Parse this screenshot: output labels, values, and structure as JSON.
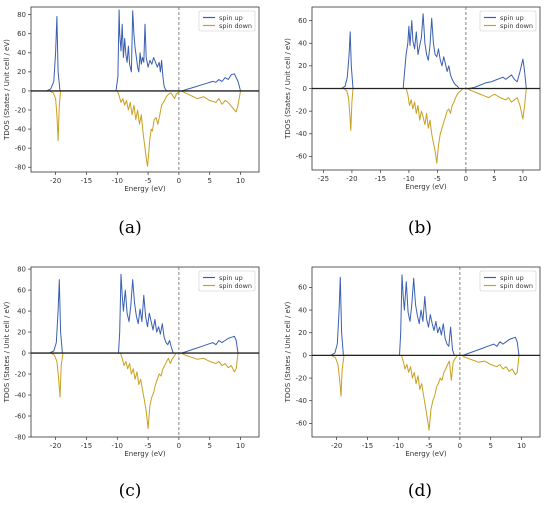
{
  "colors": {
    "spin_up": "#3a5fb0",
    "spin_down": "#c9a020",
    "axis": "#333333",
    "zero_line": "#222222",
    "fermi_line": "#666666"
  },
  "chart_data": [
    {
      "panel": "(a)",
      "type": "line",
      "xlabel": "Energy (eV)",
      "ylabel": "TDOS (States / Unit cell / eV)",
      "xlim": [
        -24,
        13
      ],
      "ylim": [
        -85,
        88
      ],
      "xticks": [
        -20,
        -15,
        -10,
        -5,
        0,
        5,
        10
      ],
      "yticks": [
        -80,
        -60,
        -40,
        -20,
        0,
        20,
        40,
        60,
        80
      ],
      "fermi_level": 0,
      "legend": "top-right",
      "series": [
        {
          "name": "spin up",
          "color": "#3a5fb0",
          "x": [
            -21.5,
            -20.8,
            -20.3,
            -20.0,
            -19.8,
            -19.6,
            -19.3,
            -10.2,
            -9.9,
            -9.7,
            -9.6,
            -9.4,
            -9.2,
            -9.0,
            -8.8,
            -8.6,
            -8.4,
            -8.2,
            -8.0,
            -7.7,
            -7.5,
            -7.3,
            -7.1,
            -6.9,
            -6.7,
            -6.5,
            -6.3,
            -6.1,
            -5.9,
            -5.7,
            -5.5,
            -5.3,
            -5.0,
            -4.7,
            -4.4,
            -4.1,
            -3.8,
            -3.5,
            -3.2,
            -3.0,
            -2.8,
            -2.6,
            -2.4,
            -2.2,
            -2.0,
            0.5,
            1.5,
            2.5,
            3.5,
            4.5,
            5.5,
            6.0,
            6.5,
            7.0,
            7.5,
            8.0,
            8.5,
            9.0,
            9.3,
            9.6,
            10.0
          ],
          "values": [
            0,
            2,
            10,
            40,
            78,
            20,
            0,
            0,
            15,
            85,
            60,
            42,
            70,
            35,
            55,
            38,
            30,
            47,
            28,
            20,
            84,
            60,
            45,
            35,
            25,
            20,
            40,
            28,
            35,
            30,
            70,
            35,
            25,
            32,
            28,
            35,
            30,
            25,
            30,
            20,
            32,
            15,
            5,
            2,
            0,
            0,
            2,
            4,
            6,
            8,
            10,
            9,
            12,
            10,
            14,
            12,
            17,
            18,
            14,
            10,
            0
          ]
        },
        {
          "name": "spin down",
          "color": "#c9a020",
          "x": [
            -21.0,
            -20.4,
            -20.0,
            -19.8,
            -19.6,
            -19.4,
            -19.2,
            -10.0,
            -9.7,
            -9.4,
            -9.1,
            -8.8,
            -8.5,
            -8.2,
            -7.9,
            -7.6,
            -7.3,
            -7.0,
            -6.7,
            -6.4,
            -6.1,
            -5.8,
            -5.5,
            -5.3,
            -5.1,
            -4.9,
            -4.7,
            -4.5,
            -4.3,
            -4.0,
            -3.7,
            -3.4,
            -3.1,
            -2.8,
            -2.5,
            -2.2,
            -1.9,
            -1.6,
            -1.3,
            -1.0,
            -0.7,
            -0.4,
            0.3,
            1.0,
            2.0,
            3.0,
            4.0,
            5.0,
            6.0,
            6.5,
            7.0,
            7.5,
            8.0,
            8.5,
            9.0,
            9.3,
            9.6,
            10.0
          ],
          "values": [
            0,
            -2,
            -8,
            -25,
            -52,
            -15,
            0,
            0,
            -5,
            -12,
            -8,
            -15,
            -10,
            -20,
            -12,
            -25,
            -15,
            -30,
            -20,
            -35,
            -25,
            -45,
            -60,
            -70,
            -79,
            -65,
            -50,
            -40,
            -42,
            -30,
            -28,
            -35,
            -25,
            -15,
            -12,
            -8,
            -5,
            -3,
            -2,
            -5,
            -8,
            -3,
            0,
            -2,
            -5,
            -8,
            -6,
            -10,
            -12,
            -8,
            -14,
            -10,
            -12,
            -16,
            -20,
            -22,
            -15,
            0
          ]
        }
      ]
    },
    {
      "panel": "(b)",
      "type": "line",
      "xlabel": "Energy (eV)",
      "ylabel": "TDOS (States / Unit cell / eV)",
      "xlim": [
        -27,
        13
      ],
      "ylim": [
        -72,
        72
      ],
      "xticks": [
        -25,
        -20,
        -15,
        -10,
        -5,
        0,
        5,
        10
      ],
      "yticks": [
        -60,
        -40,
        -20,
        0,
        20,
        40,
        60
      ],
      "fermi_level": 0,
      "legend": "top-right",
      "series": [
        {
          "name": "spin up",
          "color": "#3a5fb0",
          "x": [
            -21.8,
            -21.2,
            -20.8,
            -20.5,
            -20.3,
            -20.1,
            -19.8,
            -11.0,
            -10.8,
            -10.5,
            -10.2,
            -10.0,
            -9.8,
            -9.5,
            -9.3,
            -9.0,
            -8.7,
            -8.4,
            -8.1,
            -7.8,
            -7.5,
            -7.2,
            -6.9,
            -6.6,
            -6.3,
            -6.0,
            -5.7,
            -5.4,
            -5.1,
            -4.8,
            -4.5,
            -4.2,
            -3.9,
            -3.6,
            -3.3,
            -3.0,
            -2.7,
            -2.4,
            -2.1,
            -1.8,
            -1.5,
            -1.2,
            0.5,
            1.5,
            2.5,
            3.5,
            4.5,
            5.5,
            6.5,
            7.0,
            7.5,
            8.0,
            8.5,
            9.0,
            9.5,
            10.0,
            10.3,
            10.6
          ],
          "values": [
            0,
            2,
            10,
            30,
            50,
            20,
            0,
            0,
            12,
            30,
            40,
            55,
            38,
            60,
            42,
            35,
            50,
            30,
            38,
            45,
            66,
            40,
            30,
            25,
            38,
            62,
            40,
            30,
            28,
            35,
            25,
            20,
            28,
            22,
            15,
            20,
            12,
            8,
            5,
            3,
            2,
            0,
            0,
            1,
            3,
            5,
            6,
            8,
            10,
            8,
            10,
            12,
            8,
            6,
            15,
            26,
            15,
            0
          ]
        },
        {
          "name": "spin down",
          "color": "#c9a020",
          "x": [
            -21.4,
            -20.9,
            -20.6,
            -20.4,
            -20.2,
            -20.0,
            -19.8,
            -10.5,
            -10.2,
            -9.9,
            -9.6,
            -9.3,
            -9.0,
            -8.7,
            -8.4,
            -8.1,
            -7.8,
            -7.5,
            -7.2,
            -6.9,
            -6.6,
            -6.3,
            -6.0,
            -5.7,
            -5.4,
            -5.1,
            -4.8,
            -4.5,
            -4.2,
            -3.9,
            -3.6,
            -3.3,
            -3.0,
            -2.7,
            -2.4,
            -2.1,
            -1.8,
            -1.5,
            -1.2,
            -0.9,
            -0.5,
            0.2,
            1.0,
            2.0,
            3.0,
            4.0,
            5.0,
            6.0,
            7.0,
            7.5,
            8.0,
            8.5,
            9.0,
            9.5,
            10.0,
            10.3,
            10.6
          ],
          "values": [
            0,
            -2,
            -8,
            -20,
            -37,
            -12,
            0,
            0,
            -5,
            -15,
            -10,
            -18,
            -12,
            -22,
            -15,
            -28,
            -20,
            -25,
            -32,
            -22,
            -35,
            -28,
            -40,
            -48,
            -55,
            -66,
            -50,
            -40,
            -35,
            -30,
            -25,
            -20,
            -18,
            -22,
            -15,
            -12,
            -8,
            -5,
            -3,
            -2,
            0,
            0,
            -2,
            -4,
            -6,
            -8,
            -5,
            -8,
            -10,
            -8,
            -12,
            -10,
            -8,
            -15,
            -27,
            -15,
            0
          ]
        }
      ]
    },
    {
      "panel": "(c)",
      "type": "line",
      "xlabel": "Energy (eV)",
      "ylabel": "TDOS (States / Unit cell / eV)",
      "xlim": [
        -24,
        13
      ],
      "ylim": [
        -80,
        82
      ],
      "xticks": [
        -20,
        -15,
        -10,
        -5,
        0,
        5,
        10
      ],
      "yticks": [
        -80,
        -60,
        -40,
        -20,
        0,
        20,
        40,
        60,
        80
      ],
      "fermi_level": 0,
      "legend": "top-right",
      "series": [
        {
          "name": "spin up",
          "color": "#3a5fb0",
          "x": [
            -21.0,
            -20.3,
            -19.9,
            -19.6,
            -19.4,
            -19.2,
            -18.9,
            -9.8,
            -9.6,
            -9.4,
            -9.2,
            -9.0,
            -8.7,
            -8.4,
            -8.1,
            -7.8,
            -7.5,
            -7.2,
            -6.9,
            -6.6,
            -6.3,
            -6.0,
            -5.7,
            -5.4,
            -5.1,
            -4.8,
            -4.5,
            -4.2,
            -3.9,
            -3.6,
            -3.3,
            -3.0,
            -2.7,
            -2.4,
            -2.1,
            -1.8,
            -1.5,
            -1.2,
            -0.9,
            0.5,
            1.5,
            2.5,
            3.5,
            4.5,
            5.5,
            6.0,
            6.5,
            7.0,
            7.5,
            8.0,
            8.5,
            9.0,
            9.3,
            9.6
          ],
          "values": [
            0,
            2,
            10,
            40,
            70,
            20,
            0,
            0,
            20,
            75,
            55,
            40,
            60,
            38,
            30,
            45,
            70,
            48,
            35,
            28,
            42,
            30,
            55,
            35,
            25,
            38,
            30,
            22,
            32,
            20,
            25,
            18,
            28,
            15,
            10,
            8,
            12,
            5,
            0,
            0,
            2,
            4,
            6,
            8,
            10,
            8,
            12,
            10,
            12,
            14,
            15,
            16,
            12,
            0
          ]
        },
        {
          "name": "spin down",
          "color": "#c9a020",
          "x": [
            -20.8,
            -20.2,
            -19.8,
            -19.5,
            -19.3,
            -19.1,
            -18.8,
            -9.5,
            -9.2,
            -8.9,
            -8.6,
            -8.3,
            -8.0,
            -7.7,
            -7.4,
            -7.1,
            -6.8,
            -6.5,
            -6.2,
            -5.9,
            -5.6,
            -5.3,
            -5.0,
            -4.7,
            -4.4,
            -4.1,
            -3.8,
            -3.5,
            -3.2,
            -2.9,
            -2.6,
            -2.3,
            -2.0,
            -1.7,
            -1.4,
            -1.1,
            -0.8,
            -0.4,
            0.3,
            1.0,
            2.0,
            3.0,
            4.0,
            5.0,
            6.0,
            6.5,
            7.0,
            7.5,
            8.0,
            8.5,
            9.0,
            9.3,
            9.6
          ],
          "values": [
            0,
            -2,
            -8,
            -25,
            -42,
            -12,
            0,
            0,
            -5,
            -12,
            -8,
            -15,
            -10,
            -20,
            -15,
            -25,
            -18,
            -30,
            -25,
            -35,
            -45,
            -55,
            -72,
            -50,
            -42,
            -38,
            -30,
            -25,
            -20,
            -22,
            -15,
            -12,
            -8,
            -5,
            -10,
            -6,
            -3,
            0,
            0,
            -2,
            -4,
            -6,
            -5,
            -8,
            -10,
            -8,
            -12,
            -10,
            -14,
            -12,
            -18,
            -15,
            0
          ]
        }
      ]
    },
    {
      "panel": "(d)",
      "type": "line",
      "xlabel": "Energy (eV)",
      "ylabel": "TDOS (States / Unit cell / eV)",
      "xlim": [
        -24,
        13
      ],
      "ylim": [
        -72,
        78
      ],
      "xticks": [
        -20,
        -15,
        -10,
        -5,
        0,
        5,
        10
      ],
      "yticks": [
        -60,
        -40,
        -20,
        0,
        20,
        40,
        60
      ],
      "fermi_level": 0,
      "legend": "top-right",
      "series": [
        {
          "name": "spin up",
          "color": "#3a5fb0",
          "x": [
            -21.0,
            -20.3,
            -19.9,
            -19.6,
            -19.4,
            -19.2,
            -18.9,
            -9.8,
            -9.6,
            -9.4,
            -9.2,
            -9.0,
            -8.7,
            -8.4,
            -8.1,
            -7.8,
            -7.5,
            -7.2,
            -6.9,
            -6.6,
            -6.3,
            -6.0,
            -5.7,
            -5.4,
            -5.1,
            -4.8,
            -4.5,
            -4.2,
            -3.9,
            -3.6,
            -3.3,
            -3.0,
            -2.7,
            -2.4,
            -2.1,
            -1.8,
            -1.5,
            -1.2,
            -0.9,
            0.5,
            1.5,
            2.5,
            3.5,
            4.5,
            5.5,
            6.0,
            6.5,
            7.0,
            7.5,
            8.0,
            8.5,
            9.0,
            9.3,
            9.6
          ],
          "values": [
            0,
            2,
            10,
            40,
            69,
            20,
            0,
            0,
            20,
            71,
            52,
            40,
            65,
            38,
            30,
            45,
            68,
            45,
            35,
            28,
            40,
            30,
            52,
            32,
            25,
            36,
            28,
            22,
            30,
            20,
            25,
            18,
            28,
            15,
            10,
            8,
            25,
            5,
            0,
            0,
            2,
            4,
            6,
            8,
            10,
            8,
            12,
            10,
            12,
            14,
            15,
            16,
            12,
            0
          ]
        },
        {
          "name": "spin down",
          "color": "#c9a020",
          "x": [
            -20.8,
            -20.2,
            -19.8,
            -19.5,
            -19.3,
            -19.1,
            -18.8,
            -9.5,
            -9.2,
            -8.9,
            -8.6,
            -8.3,
            -8.0,
            -7.7,
            -7.4,
            -7.1,
            -6.8,
            -6.5,
            -6.2,
            -5.9,
            -5.6,
            -5.3,
            -5.0,
            -4.7,
            -4.4,
            -4.1,
            -3.8,
            -3.5,
            -3.2,
            -2.9,
            -2.6,
            -2.3,
            -2.0,
            -1.7,
            -1.4,
            -1.1,
            -0.8,
            -0.4,
            0.3,
            1.0,
            2.0,
            3.0,
            4.0,
            5.0,
            6.0,
            6.5,
            7.0,
            7.5,
            8.0,
            8.5,
            9.0,
            9.3,
            9.6
          ],
          "values": [
            0,
            -2,
            -8,
            -22,
            -36,
            -12,
            0,
            0,
            -5,
            -12,
            -8,
            -15,
            -10,
            -20,
            -15,
            -25,
            -18,
            -30,
            -25,
            -35,
            -45,
            -55,
            -66,
            -48,
            -40,
            -36,
            -28,
            -25,
            -20,
            -22,
            -15,
            -12,
            -8,
            -5,
            -22,
            -6,
            -3,
            0,
            0,
            -2,
            -4,
            -6,
            -5,
            -8,
            -10,
            -8,
            -12,
            -10,
            -14,
            -12,
            -17,
            -15,
            0
          ]
        }
      ]
    }
  ]
}
